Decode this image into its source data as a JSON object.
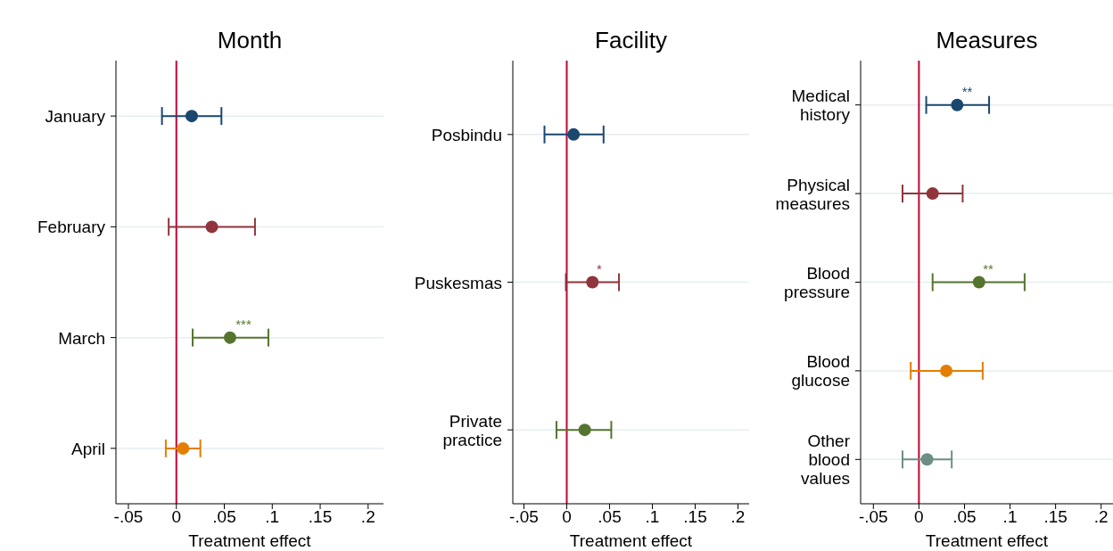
{
  "chart_data": [
    {
      "type": "scatter",
      "title": "Month",
      "xlabel": "Treatment effect",
      "orientation": "horizontal",
      "categories": [
        "January",
        "February",
        "March",
        "April"
      ],
      "series": [
        {
          "values": [
            0.016,
            0.037,
            0.056,
            0.007
          ],
          "colors": [
            "#1a476f",
            "#90353b",
            "#55752f",
            "#e37e00"
          ],
          "errors": [
            [
              -0.015,
              0.047
            ],
            [
              -0.008,
              0.082
            ],
            [
              0.017,
              0.096
            ],
            [
              -0.011,
              0.025
            ]
          ]
        }
      ],
      "xlim": [
        -0.063,
        0.216
      ],
      "xticks": [
        {
          "value": -0.05,
          "label": "-.05"
        },
        {
          "value": 0,
          "label": "0"
        },
        {
          "value": 0.05,
          "label": ".05"
        },
        {
          "value": 0.1,
          "label": ".1"
        },
        {
          "value": 0.15,
          "label": ".15"
        },
        {
          "value": 0.2,
          "label": ".2"
        }
      ],
      "ref_lines": [
        {
          "axis": "x",
          "value": 0,
          "color": "#c10534"
        }
      ],
      "annotations": [
        {
          "text": "***",
          "x": 0.07,
          "y": "March"
        }
      ],
      "grid": "y",
      "marker": "circle",
      "legend": false
    },
    {
      "type": "scatter",
      "title": "Facility",
      "xlabel": "Treatment effect",
      "orientation": "horizontal",
      "categories": [
        "Posbindu",
        "Puskesmas",
        "Private practice"
      ],
      "series": [
        {
          "values": [
            0.008,
            0.03,
            0.021
          ],
          "colors": [
            "#1a476f",
            "#90353b",
            "#55752f"
          ],
          "errors": [
            [
              -0.026,
              0.043
            ],
            [
              -0.001,
              0.061
            ],
            [
              -0.012,
              0.052
            ]
          ]
        }
      ],
      "xlim": [
        -0.063,
        0.213
      ],
      "xticks": [
        {
          "value": -0.05,
          "label": "-.05"
        },
        {
          "value": 0,
          "label": "0"
        },
        {
          "value": 0.05,
          "label": ".05"
        },
        {
          "value": 0.1,
          "label": ".1"
        },
        {
          "value": 0.15,
          "label": ".15"
        },
        {
          "value": 0.2,
          "label": ".2"
        }
      ],
      "ref_lines": [
        {
          "axis": "x",
          "value": 0,
          "color": "#c10534"
        }
      ],
      "annotations": [
        {
          "text": "*",
          "x": 0.038,
          "y": "Puskesmas"
        }
      ],
      "grid": "y",
      "marker": "circle",
      "legend": false
    },
    {
      "type": "scatter",
      "title": "Measures",
      "xlabel": "Treatment effect",
      "orientation": "horizontal",
      "categories": [
        "Medical history",
        "Physical measures",
        "Blood pressure",
        "Blood glucose",
        "Other blood values"
      ],
      "series": [
        {
          "values": [
            0.042,
            0.015,
            0.066,
            0.03,
            0.009
          ],
          "colors": [
            "#1a476f",
            "#90353b",
            "#55752f",
            "#e37e00",
            "#6e8e84"
          ],
          "errors": [
            [
              0.008,
              0.077
            ],
            [
              -0.018,
              0.048
            ],
            [
              0.015,
              0.116
            ],
            [
              -0.009,
              0.07
            ],
            [
              -0.018,
              0.036
            ]
          ]
        }
      ],
      "xlim": [
        -0.064,
        0.213
      ],
      "xticks": [
        {
          "value": -0.05,
          "label": "-.05"
        },
        {
          "value": 0,
          "label": "0"
        },
        {
          "value": 0.05,
          "label": ".05"
        },
        {
          "value": 0.1,
          "label": ".1"
        },
        {
          "value": 0.15,
          "label": ".15"
        },
        {
          "value": 0.2,
          "label": ".2"
        }
      ],
      "ref_lines": [
        {
          "axis": "x",
          "value": 0,
          "color": "#c10534"
        }
      ],
      "annotations": [
        {
          "text": "**",
          "x": 0.053,
          "y": "Medical history"
        },
        {
          "text": "**",
          "x": 0.076,
          "y": "Blood pressure"
        }
      ],
      "grid": "y",
      "marker": "circle",
      "legend": false
    }
  ]
}
